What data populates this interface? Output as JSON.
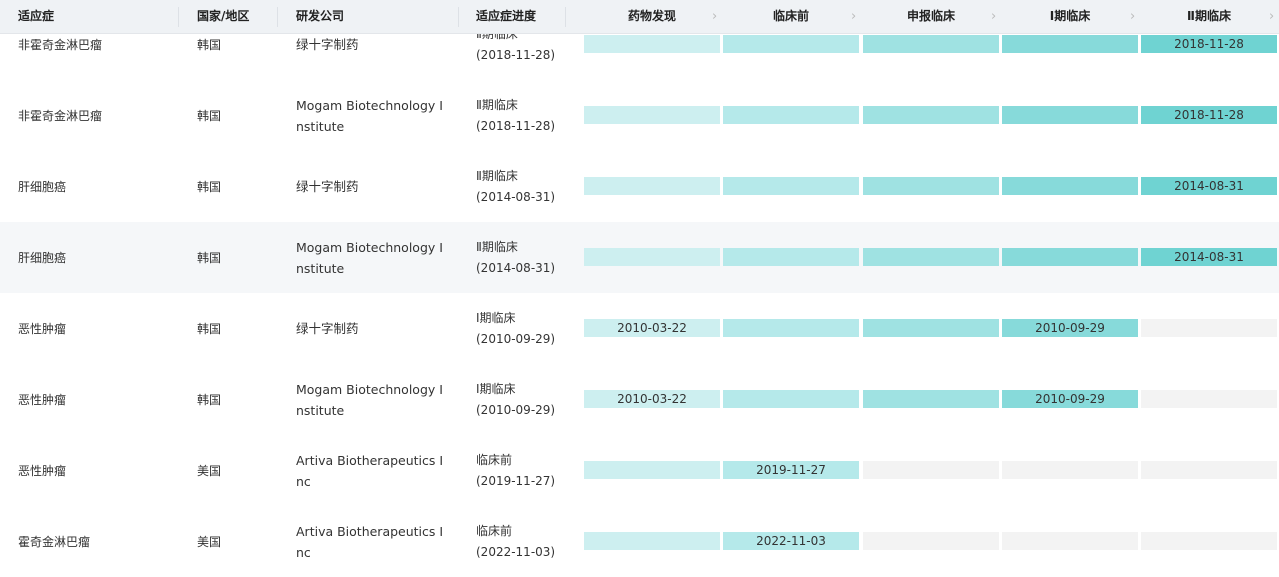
{
  "header": {
    "columns": [
      "适应症",
      "国家/地区",
      "研发公司",
      "适应症进度"
    ],
    "stages": [
      "药物发现",
      "临床前",
      "申报临床",
      "Ⅰ期临床",
      "Ⅱ期临床"
    ]
  },
  "stage_colors": [
    "#cdeff0",
    "#b5e9ea",
    "#9fe2e2",
    "#87dada",
    "#6fd3d2"
  ],
  "empty_color": "#f3f3f3",
  "rows": [
    {
      "indication": "非霍奇金淋巴瘤",
      "country": "韩国",
      "company": "绿十字制药",
      "progress": {
        "stage": "Ⅱ期临床",
        "date": "(2018-11-28)"
      },
      "bars": [
        {
          "reached": true
        },
        {
          "reached": true
        },
        {
          "reached": true
        },
        {
          "reached": true
        },
        {
          "reached": true,
          "date": "2018-11-28"
        }
      ]
    },
    {
      "indication": "非霍奇金淋巴瘤",
      "country": "韩国",
      "company": "Mogam Biotechnology Institute",
      "progress": {
        "stage": "Ⅱ期临床",
        "date": "(2018-11-28)"
      },
      "bars": [
        {
          "reached": true
        },
        {
          "reached": true
        },
        {
          "reached": true
        },
        {
          "reached": true
        },
        {
          "reached": true,
          "date": "2018-11-28"
        }
      ]
    },
    {
      "indication": "肝细胞癌",
      "country": "韩国",
      "company": "绿十字制药",
      "progress": {
        "stage": "Ⅱ期临床",
        "date": "(2014-08-31)"
      },
      "bars": [
        {
          "reached": true
        },
        {
          "reached": true
        },
        {
          "reached": true
        },
        {
          "reached": true
        },
        {
          "reached": true,
          "date": "2014-08-31"
        }
      ]
    },
    {
      "indication": "肝细胞癌",
      "country": "韩国",
      "company": "Mogam Biotechnology Institute",
      "progress": {
        "stage": "Ⅱ期临床",
        "date": "(2014-08-31)"
      },
      "bars": [
        {
          "reached": true
        },
        {
          "reached": true
        },
        {
          "reached": true
        },
        {
          "reached": true
        },
        {
          "reached": true,
          "date": "2014-08-31"
        }
      ],
      "highlighted": true
    },
    {
      "indication": "恶性肿瘤",
      "country": "韩国",
      "company": "绿十字制药",
      "progress": {
        "stage": "Ⅰ期临床",
        "date": "(2010-09-29)"
      },
      "bars": [
        {
          "reached": true,
          "date": "2010-03-22"
        },
        {
          "reached": true
        },
        {
          "reached": true
        },
        {
          "reached": true,
          "date": "2010-09-29"
        },
        {
          "reached": false
        }
      ]
    },
    {
      "indication": "恶性肿瘤",
      "country": "韩国",
      "company": "Mogam Biotechnology Institute",
      "progress": {
        "stage": "Ⅰ期临床",
        "date": "(2010-09-29)"
      },
      "bars": [
        {
          "reached": true,
          "date": "2010-03-22"
        },
        {
          "reached": true
        },
        {
          "reached": true
        },
        {
          "reached": true,
          "date": "2010-09-29"
        },
        {
          "reached": false
        }
      ]
    },
    {
      "indication": "恶性肿瘤",
      "country": "美国",
      "company": "Artiva Biotherapeutics Inc",
      "progress": {
        "stage": "临床前",
        "date": "(2019-11-27)"
      },
      "bars": [
        {
          "reached": true
        },
        {
          "reached": true,
          "date": "2019-11-27"
        },
        {
          "reached": false
        },
        {
          "reached": false
        },
        {
          "reached": false
        }
      ]
    },
    {
      "indication": "霍奇金淋巴瘤",
      "country": "美国",
      "company": "Artiva Biotherapeutics Inc",
      "progress": {
        "stage": "临床前",
        "date": "(2022-11-03)"
      },
      "bars": [
        {
          "reached": true
        },
        {
          "reached": true,
          "date": "2022-11-03"
        },
        {
          "reached": false
        },
        {
          "reached": false
        },
        {
          "reached": false
        }
      ]
    }
  ]
}
